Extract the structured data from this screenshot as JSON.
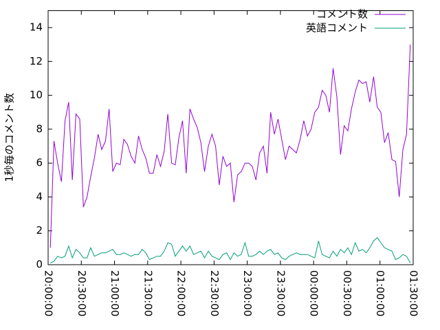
{
  "chart_data": {
    "type": "line",
    "y_label": "1秒毎のコメント数",
    "xlim": [
      0,
      330
    ],
    "xticks": [
      {
        "value": 0,
        "label": "20:00:00"
      },
      {
        "value": 30,
        "label": "20:30:00"
      },
      {
        "value": 60,
        "label": "21:00:00"
      },
      {
        "value": 90,
        "label": "21:30:00"
      },
      {
        "value": 120,
        "label": "22:00:00"
      },
      {
        "value": 150,
        "label": "22:30:00"
      },
      {
        "value": 180,
        "label": "23:00:00"
      },
      {
        "value": 210,
        "label": "23:30:00"
      },
      {
        "value": 240,
        "label": "00:00:00"
      },
      {
        "value": 270,
        "label": "00:30:00"
      },
      {
        "value": 300,
        "label": "01:00:00"
      },
      {
        "value": 330,
        "label": "01:30:00"
      }
    ],
    "ylim": [
      0,
      15
    ],
    "yticks": [
      0,
      2,
      4,
      6,
      8,
      10,
      12,
      14
    ],
    "legend": "top-right",
    "x": [
      2,
      5.3,
      8.6,
      12,
      15.3,
      18.6,
      21.9,
      25.2,
      28.6,
      31.9,
      35.2,
      38.5,
      41.8,
      45.2,
      48.5,
      51.8,
      55.1,
      58.4,
      61.8,
      65.1,
      68.4,
      71.7,
      75,
      78.4,
      81.7,
      85,
      88.3,
      91.6,
      95,
      98.3,
      101.6,
      104.9,
      108.2,
      111.6,
      114.9,
      118.2,
      121.5,
      124.8,
      128.2,
      131.5,
      134.8,
      138.1,
      141.4,
      144.8,
      148.1,
      151.4,
      154.7,
      158,
      161.4,
      164.7,
      168,
      171.3,
      174.6,
      178,
      181.3,
      184.6,
      187.9,
      191.2,
      194.6,
      197.9,
      201.2,
      204.5,
      207.8,
      211.2,
      214.5,
      217.8,
      221.1,
      224.4,
      227.8,
      231.1,
      234.4,
      237.7,
      241,
      244.4,
      247.7,
      251,
      254.3,
      257.6,
      261,
      264.3,
      267.6,
      270.9,
      274.2,
      277.6,
      280.9,
      284.2,
      287.5,
      290.8,
      294.2,
      297.5,
      300.8,
      304.1,
      307.4,
      310.8,
      314.1,
      317.4,
      320.7,
      324,
      327.4
    ],
    "series": [
      {
        "name": "コメント数",
        "color": "#9400d3",
        "values": [
          1.0,
          7.3,
          6,
          4.9,
          8.5,
          9.6,
          5,
          8.9,
          8.6,
          3.4,
          4,
          5.2,
          6.3,
          7.7,
          6.8,
          7.3,
          9.2,
          5.5,
          6,
          5.9,
          7.4,
          7.1,
          6.4,
          6,
          7.6,
          6.8,
          6.3,
          5.4,
          5.4,
          6.5,
          5.8,
          6.7,
          8.9,
          6,
          5.9,
          7.5,
          8.5,
          5.4,
          9.2,
          8.6,
          8.1,
          7.2,
          5.5,
          7,
          7.7,
          7,
          4.7,
          6.4,
          5.8,
          6,
          3.7,
          5.3,
          5.5,
          6,
          6,
          5.8,
          5,
          6.6,
          7,
          5.4,
          9,
          7.7,
          8.6,
          7.4,
          6.2,
          7,
          6.8,
          6.6,
          7.4,
          8.5,
          7.6,
          8,
          9,
          9.3,
          10.3,
          10,
          9,
          11.6,
          9.9,
          6.5,
          8.2,
          7.9,
          9.2,
          10.2,
          10.9,
          10.7,
          10.8,
          9.6,
          11.1,
          9.3,
          9,
          7.2,
          7.8,
          6.2,
          6.1,
          4,
          6.8,
          7.7,
          13
        ]
      },
      {
        "name": "英語コメント",
        "color": "#009e73",
        "values": [
          0.1,
          0.2,
          0.5,
          0.4,
          0.5,
          1.1,
          0.4,
          0.9,
          0.7,
          0.4,
          0.4,
          1,
          0.5,
          0.6,
          0.7,
          0.7,
          0.8,
          0.9,
          0.6,
          0.6,
          0.7,
          0.6,
          0.5,
          0.6,
          0.6,
          0.9,
          0.7,
          0.3,
          0.4,
          0.5,
          0.5,
          0.8,
          1.3,
          1.2,
          0.5,
          0.8,
          1.1,
          0.8,
          1.1,
          0.6,
          0.7,
          0.8,
          0.4,
          0.8,
          0.5,
          0.4,
          0.3,
          0.6,
          0.7,
          0.3,
          0.7,
          0.5,
          0.6,
          1.3,
          0.5,
          0.5,
          0.6,
          0.8,
          0.6,
          0.8,
          0.9,
          0.6,
          0.7,
          0.4,
          0.3,
          0.5,
          0.6,
          0.7,
          0.6,
          0.6,
          0.6,
          0.5,
          0.4,
          1.4,
          0.6,
          0.5,
          0.4,
          0.8,
          0.5,
          0.9,
          0.7,
          1,
          0.6,
          1.3,
          0.8,
          0.9,
          0.7,
          1,
          1.4,
          1.6,
          1.3,
          1,
          0.9,
          0.8,
          0.3,
          0.4,
          0.6,
          0.5,
          0.1
        ]
      }
    ]
  }
}
